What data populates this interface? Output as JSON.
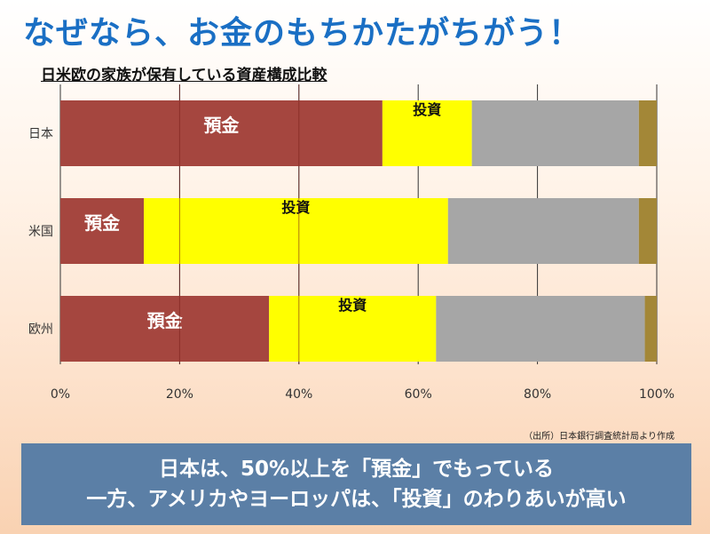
{
  "headline": "なぜなら、お金のもちかたがちがう！",
  "chart_data": {
    "type": "bar",
    "orientation": "horizontal",
    "stacked": true,
    "title": "日米欧の家族が保有している資産構成比較",
    "categories": [
      "日本",
      "米国",
      "欧州"
    ],
    "series": [
      {
        "values": [
          54,
          14,
          35
        ],
        "color": "#a5463f",
        "labels": [
          "預金",
          "預金",
          "預金"
        ]
      },
      {
        "values": [
          15,
          51,
          28
        ],
        "color": "#ffff00",
        "labels": [
          "投資",
          "投資",
          "投資"
        ]
      },
      {
        "values": [
          28,
          32,
          35
        ],
        "color": "#a6a6a6",
        "labels": [
          "",
          "",
          ""
        ]
      },
      {
        "values": [
          3,
          3,
          2
        ],
        "color": "#a38737",
        "labels": [
          "",
          "",
          ""
        ]
      }
    ],
    "xlim": [
      0,
      100
    ],
    "xticks": [
      "0%",
      "20%",
      "40%",
      "60%",
      "80%",
      "100%"
    ],
    "grid": true
  },
  "source": "（出所）日本銀行調査統計局より作成",
  "conclusion": {
    "line1": "日本は、50%以上を「預金」でもっている",
    "line2": "一方、アメリカやヨーロッパは、「投資」のわりあいが高い"
  }
}
